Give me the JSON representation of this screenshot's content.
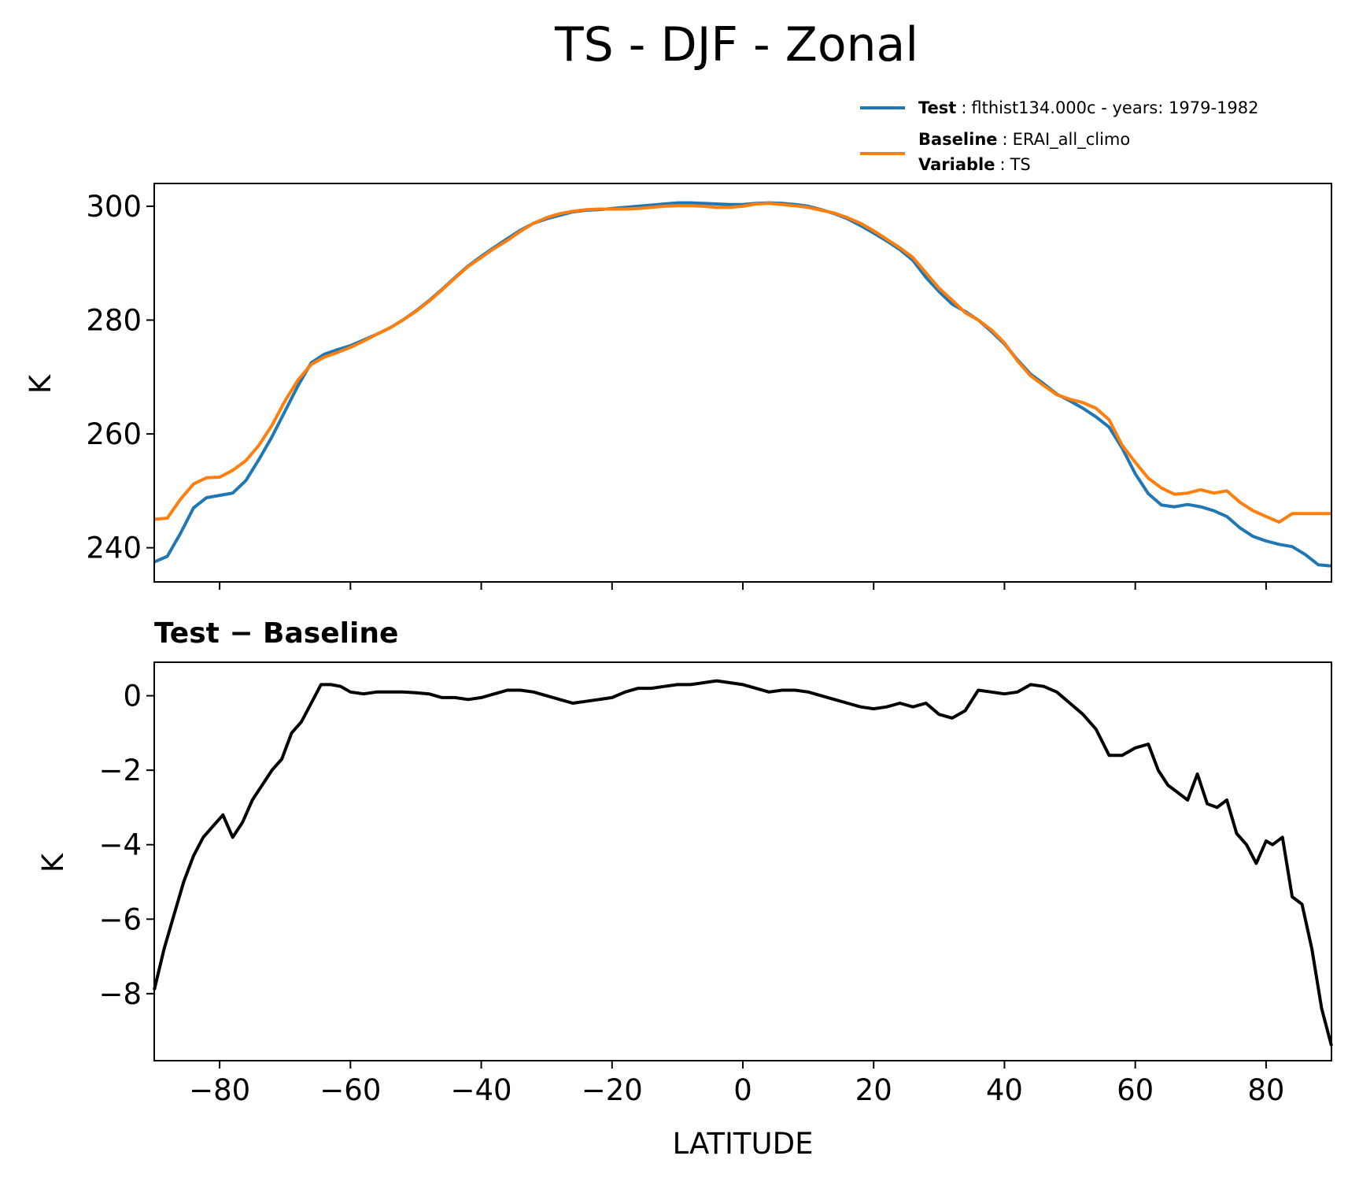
{
  "chart_data": [
    {
      "type": "line",
      "title": "TS - DJF - Zonal",
      "xlabel": "",
      "ylabel": "K",
      "xlim": [
        -90,
        90
      ],
      "ylim": [
        234,
        304
      ],
      "yticks": [
        240,
        260,
        280,
        300
      ],
      "xticks": [
        -80,
        -60,
        -40,
        -20,
        0,
        20,
        40,
        60,
        80
      ],
      "grid": false,
      "legend": {
        "placement": "top-right",
        "entries": [
          {
            "bold": "Test",
            "sep": ":",
            "text": "flthist134.000c - years: 1979-1982",
            "series": "test"
          },
          {
            "bold": "Baseline",
            "sep": ":",
            "text": "ERAI_all_climo",
            "series": "baseline"
          },
          {
            "bold": "Variable",
            "sep": ":",
            "text": "TS",
            "series": null
          }
        ]
      },
      "series": [
        {
          "name": "test",
          "color": "#1f77b4",
          "x": [
            -90,
            -88,
            -86,
            -84,
            -82,
            -80,
            -78,
            -76,
            -74,
            -72,
            -70,
            -68,
            -66,
            -64,
            -62,
            -60,
            -58,
            -56,
            -54,
            -52,
            -50,
            -48,
            -46,
            -44,
            -42,
            -40,
            -38,
            -36,
            -34,
            -32,
            -30,
            -28,
            -26,
            -24,
            -22,
            -20,
            -18,
            -16,
            -14,
            -12,
            -10,
            -8,
            -6,
            -4,
            -2,
            0,
            2,
            4,
            6,
            8,
            10,
            12,
            14,
            16,
            18,
            20,
            22,
            24,
            26,
            28,
            30,
            32,
            34,
            36,
            38,
            40,
            42,
            44,
            46,
            48,
            50,
            52,
            54,
            56,
            58,
            60,
            62,
            64,
            66,
            68,
            70,
            72,
            74,
            76,
            78,
            80,
            82,
            84,
            86,
            88,
            90
          ],
          "y": [
            237.5,
            238.5,
            242.5,
            247.0,
            248.8,
            249.2,
            249.6,
            251.8,
            255.5,
            259.5,
            264.0,
            268.5,
            272.5,
            274.0,
            274.8,
            275.5,
            276.5,
            277.5,
            278.6,
            280.0,
            281.6,
            283.4,
            285.4,
            287.5,
            289.5,
            291.2,
            292.8,
            294.3,
            295.8,
            297.0,
            297.8,
            298.4,
            299.0,
            299.3,
            299.4,
            299.6,
            299.8,
            300.0,
            300.2,
            300.4,
            300.6,
            300.6,
            300.5,
            300.4,
            300.3,
            300.3,
            300.5,
            300.6,
            300.5,
            300.3,
            300.0,
            299.4,
            298.7,
            297.8,
            296.6,
            295.3,
            293.9,
            292.4,
            290.5,
            287.5,
            285.0,
            282.8,
            281.5,
            280.0,
            278.0,
            275.8,
            273.0,
            270.5,
            268.8,
            267.0,
            265.8,
            264.5,
            263.0,
            261.2,
            257.5,
            253.0,
            249.5,
            247.5,
            247.2,
            247.6,
            247.2,
            246.5,
            245.5,
            243.5,
            242.0,
            241.2,
            240.6,
            240.2,
            238.8,
            237.0,
            236.8
          ]
        },
        {
          "name": "baseline",
          "color": "#ff7f0e",
          "x": [
            -90,
            -88,
            -86,
            -84,
            -82,
            -80,
            -78,
            -76,
            -74,
            -72,
            -70,
            -68,
            -66,
            -64,
            -62,
            -60,
            -58,
            -56,
            -54,
            -52,
            -50,
            -48,
            -46,
            -44,
            -42,
            -40,
            -38,
            -36,
            -34,
            -32,
            -30,
            -28,
            -26,
            -24,
            -22,
            -20,
            -18,
            -16,
            -14,
            -12,
            -10,
            -8,
            -6,
            -4,
            -2,
            0,
            2,
            4,
            6,
            8,
            10,
            12,
            14,
            16,
            18,
            20,
            22,
            24,
            26,
            28,
            30,
            32,
            34,
            36,
            38,
            40,
            42,
            44,
            46,
            48,
            50,
            52,
            54,
            56,
            58,
            60,
            62,
            64,
            66,
            68,
            70,
            72,
            74,
            76,
            78,
            80,
            82,
            84,
            86,
            88,
            90
          ],
          "y": [
            245.0,
            245.2,
            248.5,
            251.2,
            252.3,
            252.4,
            253.6,
            255.3,
            258.0,
            261.5,
            265.8,
            269.5,
            272.2,
            273.5,
            274.3,
            275.2,
            276.3,
            277.5,
            278.6,
            280.0,
            281.5,
            283.3,
            285.3,
            287.4,
            289.4,
            291.0,
            292.6,
            294.0,
            295.6,
            297.0,
            298.0,
            298.7,
            299.1,
            299.4,
            299.5,
            299.5,
            299.5,
            299.6,
            299.8,
            300.0,
            300.1,
            300.1,
            300.0,
            299.8,
            299.8,
            300.0,
            300.4,
            300.5,
            300.3,
            300.1,
            299.8,
            299.3,
            298.8,
            298.0,
            297.0,
            295.7,
            294.2,
            292.7,
            291.0,
            288.3,
            285.6,
            283.5,
            281.3,
            280.0,
            278.3,
            276.0,
            272.8,
            270.2,
            268.5,
            266.9,
            266.1,
            265.5,
            264.5,
            262.5,
            258.0,
            255.0,
            252.2,
            250.5,
            249.4,
            249.6,
            250.2,
            249.6,
            250.0,
            248.0,
            246.5,
            245.5,
            244.5,
            246.0,
            246.0,
            246.0,
            246.0
          ]
        }
      ]
    },
    {
      "type": "line",
      "title": "Test − Baseline",
      "xlabel": "LATITUDE",
      "ylabel": "K",
      "xlim": [
        -90,
        90
      ],
      "ylim": [
        -9.8,
        0.9
      ],
      "yticks": [
        -8,
        -6,
        -4,
        -2,
        0
      ],
      "xticks": [
        -80,
        -60,
        -40,
        -20,
        0,
        20,
        40,
        60,
        80
      ],
      "grid": false,
      "series": [
        {
          "name": "Test − Baseline",
          "color": "#000000",
          "x": [
            -90,
            -88.5,
            -87,
            -85.5,
            -84,
            -82.5,
            -81,
            -79.5,
            -78,
            -76.5,
            -75,
            -73.5,
            -72,
            -70.5,
            -69,
            -67.5,
            -66,
            -64.5,
            -63,
            -61.5,
            -60,
            -58,
            -56,
            -54,
            -52,
            -50,
            -48,
            -46,
            -44,
            -42,
            -40,
            -38,
            -36,
            -34,
            -32,
            -30,
            -28,
            -26,
            -24,
            -22,
            -20,
            -18,
            -16,
            -14,
            -12,
            -10,
            -8,
            -6,
            -4,
            -2,
            0,
            2,
            4,
            6,
            8,
            10,
            12,
            14,
            16,
            18,
            20,
            22,
            24,
            26,
            28,
            30,
            32,
            34,
            36,
            38,
            40,
            42,
            44,
            46,
            48,
            50,
            52,
            54,
            56,
            58,
            60,
            62,
            63.5,
            65,
            66.5,
            68,
            69.5,
            71,
            72.5,
            74,
            75.5,
            77,
            78.5,
            80,
            81,
            82.5,
            84,
            85.5,
            87,
            88.5,
            90
          ],
          "y": [
            -7.9,
            -6.8,
            -5.9,
            -5.0,
            -4.3,
            -3.8,
            -3.5,
            -3.2,
            -3.8,
            -3.4,
            -2.8,
            -2.4,
            -2.0,
            -1.7,
            -1.0,
            -0.7,
            -0.2,
            0.3,
            0.3,
            0.25,
            0.1,
            0.05,
            0.1,
            0.1,
            0.1,
            0.08,
            0.05,
            -0.05,
            -0.05,
            -0.1,
            -0.05,
            0.05,
            0.15,
            0.15,
            0.1,
            0.0,
            -0.1,
            -0.2,
            -0.15,
            -0.1,
            -0.05,
            0.1,
            0.2,
            0.2,
            0.25,
            0.3,
            0.3,
            0.35,
            0.4,
            0.35,
            0.3,
            0.2,
            0.1,
            0.15,
            0.15,
            0.1,
            0.0,
            -0.1,
            -0.2,
            -0.3,
            -0.35,
            -0.3,
            -0.2,
            -0.3,
            -0.2,
            -0.5,
            -0.6,
            -0.4,
            0.15,
            0.1,
            0.05,
            0.1,
            0.3,
            0.25,
            0.1,
            -0.2,
            -0.5,
            -0.9,
            -1.6,
            -1.6,
            -1.4,
            -1.3,
            -2.0,
            -2.4,
            -2.6,
            -2.8,
            -2.1,
            -2.9,
            -3.0,
            -2.8,
            -3.7,
            -4.0,
            -4.5,
            -3.9,
            -4.0,
            -3.8,
            -5.4,
            -5.6,
            -6.8,
            -8.4,
            -9.4
          ]
        }
      ]
    }
  ]
}
